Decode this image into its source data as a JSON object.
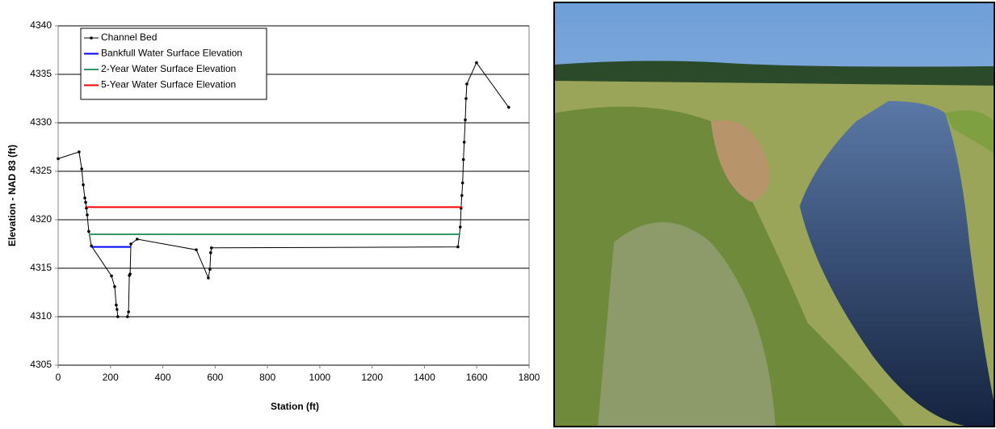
{
  "chart_data": {
    "type": "line",
    "x_label": "Station (ft)",
    "y_label": "Elevation - NAD 83 (ft)",
    "xlim": [
      0,
      1800
    ],
    "xticks": [
      0,
      200,
      400,
      600,
      800,
      1000,
      1200,
      1400,
      1600,
      1800
    ],
    "ylim": [
      4305,
      4340
    ],
    "yticks": [
      4305,
      4310,
      4315,
      4320,
      4325,
      4330,
      4335,
      4340
    ],
    "grid": true,
    "legend": "top-left",
    "series": [
      {
        "name": "Channel Bed",
        "color": "#000000",
        "marker": true,
        "x": [
          0,
          80,
          90,
          96,
          102,
          105,
          108,
          111,
          117,
          127,
          204,
          216,
          222,
          225,
          228,
          265,
          269,
          272,
          275,
          278,
          302,
          528,
          574,
          580,
          583,
          586,
          1528,
          1537,
          1540,
          1543,
          1546,
          1549,
          1552,
          1556,
          1559,
          1562,
          1599,
          1722
        ],
        "values": [
          4326.3,
          4327.0,
          4325.25,
          4323.6,
          4322.25,
          4321.8,
          4321.2,
          4320.5,
          4318.8,
          4317.3,
          4314.2,
          4313.1,
          4311.2,
          4310.75,
          4310,
          4310,
          4310.5,
          4314.25,
          4314.4,
          4317.5,
          4318,
          4316.9,
          4314,
          4314.9,
          4316.6,
          4317.1,
          4317.2,
          4319.25,
          4321.2,
          4322.5,
          4323.8,
          4326.2,
          4328,
          4330.3,
          4332.5,
          4334,
          4336.2,
          4331.6
        ]
      },
      {
        "name": "Bankfull Water Surface Elevation",
        "color": "#0000ff",
        "marker": false,
        "x": [
          127,
          278
        ],
        "values": [
          4317.2,
          4317.2
        ]
      },
      {
        "name": "2-Year Water Surface Elevation",
        "color": "#339966",
        "marker": false,
        "x": [
          117,
          1537
        ],
        "values": [
          4318.5,
          4318.5
        ]
      },
      {
        "name": "5-Year Water Surface Elevation",
        "color": "#ff0000",
        "marker": false,
        "x": [
          108,
          1543
        ],
        "values": [
          4321.3,
          4321.3
        ]
      }
    ]
  }
}
